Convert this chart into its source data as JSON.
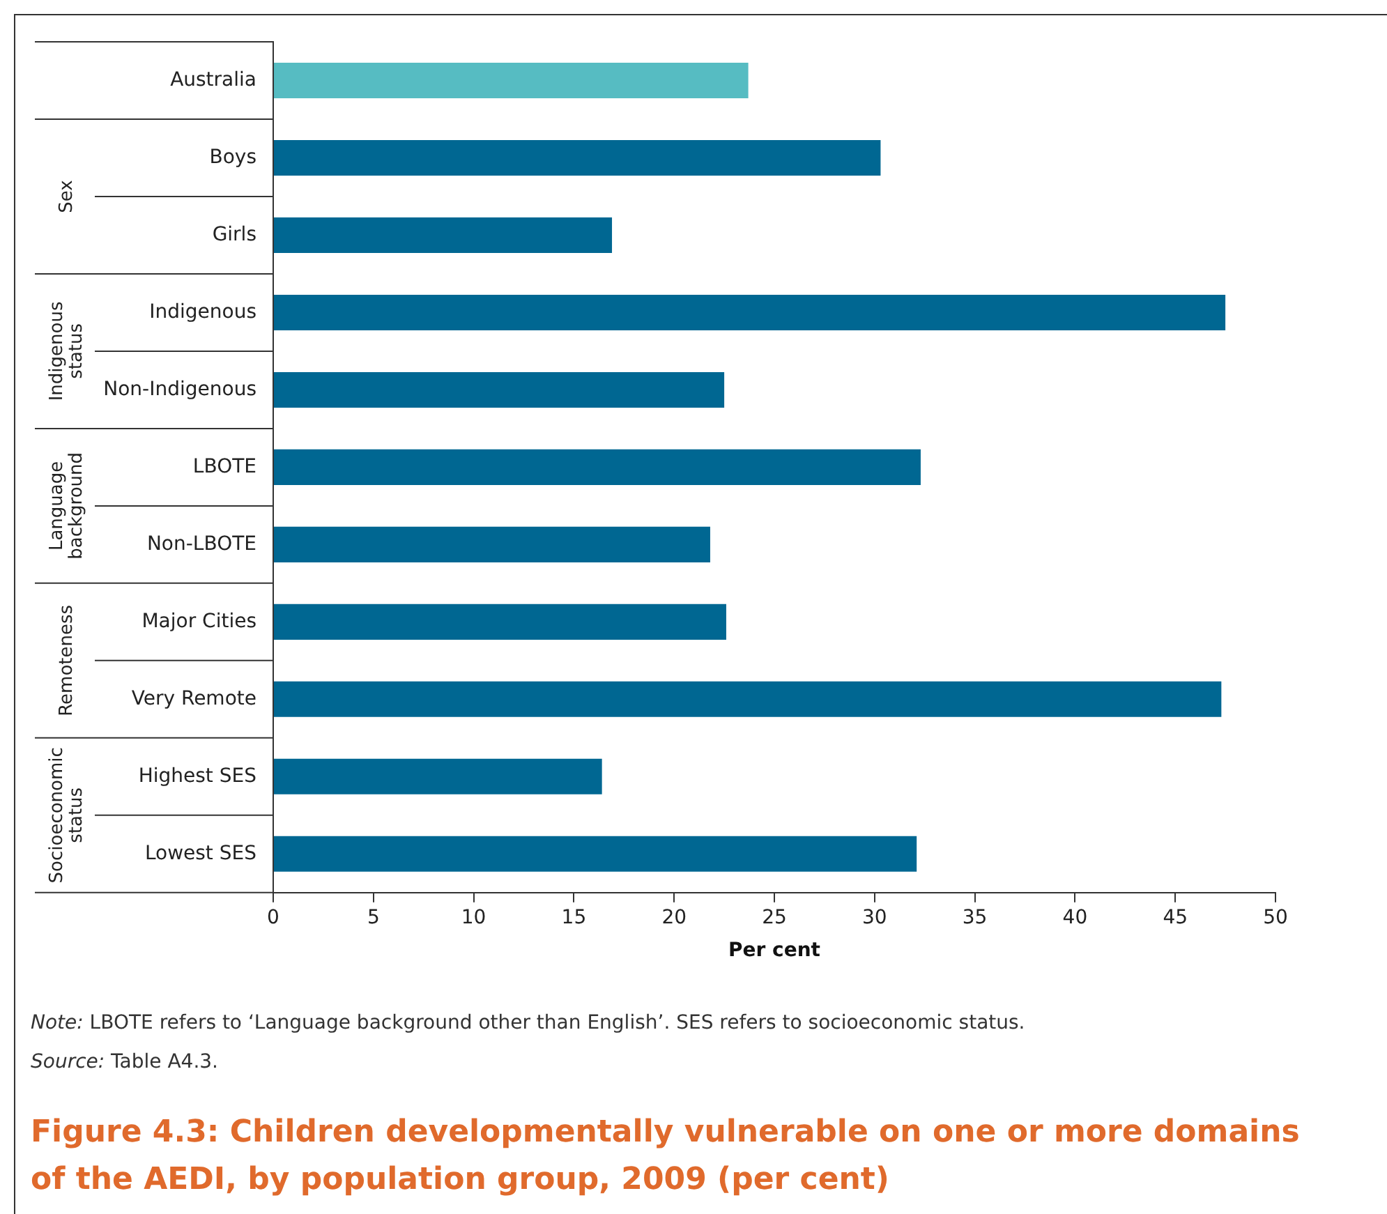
{
  "chart_data": {
    "type": "bar",
    "orientation": "horizontal",
    "title": "Figure 4.3: Children developmentally vulnerable on one or more domains of the AEDI, by population group, 2009 (per cent)",
    "xlabel": "Per cent",
    "categories": [
      "Australia",
      "Boys",
      "Girls",
      "Indigenous",
      "Non-Indigenous",
      "LBOTE",
      "Non-LBOTE",
      "Major Cities",
      "Very Remote",
      "Highest SES",
      "Lowest SES"
    ],
    "values": [
      23.7,
      30.3,
      16.9,
      47.5,
      22.5,
      32.3,
      21.8,
      22.6,
      47.3,
      16.4,
      32.1
    ],
    "colors": [
      "#56bcc2",
      "#006792",
      "#006792",
      "#006792",
      "#006792",
      "#006792",
      "#006792",
      "#006792",
      "#006792",
      "#006792",
      "#006792"
    ],
    "xlim": [
      0,
      50
    ],
    "xticks": [
      0,
      5,
      10,
      15,
      20,
      25,
      30,
      35,
      40,
      45,
      50
    ],
    "grid": false,
    "legend": false,
    "annotations": [
      "Sex",
      "Indigenous status",
      "Language background",
      "Remoteness",
      "Socioeconomic status",
      "Note: LBOTE refers to ‘Language background other than English’. SES refers to socioeconomic status.",
      "Source: Table A4.3."
    ]
  }
}
